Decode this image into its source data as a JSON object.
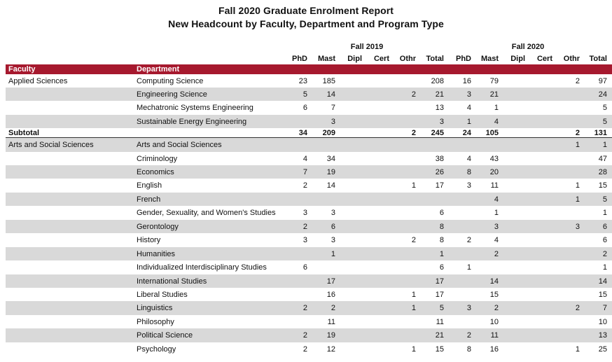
{
  "report": {
    "title": "Fall 2020 Graduate Enrolment Report",
    "subtitle": "New Headcount by Faculty, Department and Program Type",
    "group_labels": [
      "Fall 2019",
      "Fall 2020"
    ],
    "columns": [
      "PhD",
      "Mast",
      "Dipl",
      "Cert",
      "Othr",
      "Total",
      "PhD",
      "Mast",
      "Dipl",
      "Cert",
      "Othr",
      "Total"
    ],
    "band_headers": {
      "faculty": "Faculty",
      "department": "Department"
    },
    "colors": {
      "header_band": "#a6192e",
      "row_shade": "#d9d9d9"
    }
  },
  "rows": [
    {
      "faculty": "Applied Sciences",
      "department": "Computing Science",
      "values": [
        "23",
        "185",
        "",
        "",
        "",
        "208",
        "16",
        "79",
        "",
        "",
        "2",
        "97"
      ]
    },
    {
      "faculty": "",
      "department": "Engineering Science",
      "values": [
        "5",
        "14",
        "",
        "",
        "2",
        "21",
        "3",
        "21",
        "",
        "",
        "",
        "24"
      ]
    },
    {
      "faculty": "",
      "department": "Mechatronic Systems Engineering",
      "values": [
        "6",
        "7",
        "",
        "",
        "",
        "13",
        "4",
        "1",
        "",
        "",
        "",
        "5"
      ]
    },
    {
      "faculty": "",
      "department": "Sustainable Energy Engineering",
      "values": [
        "",
        "3",
        "",
        "",
        "",
        "3",
        "1",
        "4",
        "",
        "",
        "",
        "5"
      ]
    },
    {
      "faculty": "Subtotal",
      "department": "",
      "values": [
        "34",
        "209",
        "",
        "",
        "2",
        "245",
        "24",
        "105",
        "",
        "",
        "2",
        "131"
      ]
    },
    {
      "faculty": "Arts and Social Sciences",
      "department": "Arts and Social Sciences",
      "values": [
        "",
        "",
        "",
        "",
        "",
        "",
        "",
        "",
        "",
        "",
        "1",
        "1"
      ]
    },
    {
      "faculty": "",
      "department": "Criminology",
      "values": [
        "4",
        "34",
        "",
        "",
        "",
        "38",
        "4",
        "43",
        "",
        "",
        "",
        "47"
      ]
    },
    {
      "faculty": "",
      "department": "Economics",
      "values": [
        "7",
        "19",
        "",
        "",
        "",
        "26",
        "8",
        "20",
        "",
        "",
        "",
        "28"
      ]
    },
    {
      "faculty": "",
      "department": "English",
      "values": [
        "2",
        "14",
        "",
        "",
        "1",
        "17",
        "3",
        "11",
        "",
        "",
        "1",
        "15"
      ]
    },
    {
      "faculty": "",
      "department": "French",
      "values": [
        "",
        "",
        "",
        "",
        "",
        "",
        "",
        "4",
        "",
        "",
        "1",
        "5"
      ]
    },
    {
      "faculty": "",
      "department": "Gender, Sexuality, and Women's Studies",
      "values": [
        "3",
        "3",
        "",
        "",
        "",
        "6",
        "",
        "1",
        "",
        "",
        "",
        "1"
      ]
    },
    {
      "faculty": "",
      "department": "Gerontology",
      "values": [
        "2",
        "6",
        "",
        "",
        "",
        "8",
        "",
        "3",
        "",
        "",
        "3",
        "6"
      ]
    },
    {
      "faculty": "",
      "department": "History",
      "values": [
        "3",
        "3",
        "",
        "",
        "2",
        "8",
        "2",
        "4",
        "",
        "",
        "",
        "6"
      ]
    },
    {
      "faculty": "",
      "department": "Humanities",
      "values": [
        "",
        "1",
        "",
        "",
        "",
        "1",
        "",
        "2",
        "",
        "",
        "",
        "2"
      ]
    },
    {
      "faculty": "",
      "department": "Individualized Interdisciplinary Studies",
      "values": [
        "6",
        "",
        "",
        "",
        "",
        "6",
        "1",
        "",
        "",
        "",
        "",
        "1"
      ]
    },
    {
      "faculty": "",
      "department": "International Studies",
      "values": [
        "",
        "17",
        "",
        "",
        "",
        "17",
        "",
        "14",
        "",
        "",
        "",
        "14"
      ]
    },
    {
      "faculty": "",
      "department": "Liberal Studies",
      "values": [
        "",
        "16",
        "",
        "",
        "1",
        "17",
        "",
        "15",
        "",
        "",
        "",
        "15"
      ]
    },
    {
      "faculty": "",
      "department": "Linguistics",
      "values": [
        "2",
        "2",
        "",
        "",
        "1",
        "5",
        "3",
        "2",
        "",
        "",
        "2",
        "7"
      ]
    },
    {
      "faculty": "",
      "department": "Philosophy",
      "values": [
        "",
        "11",
        "",
        "",
        "",
        "11",
        "",
        "10",
        "",
        "",
        "",
        "10"
      ]
    },
    {
      "faculty": "",
      "department": "Political Science",
      "values": [
        "2",
        "19",
        "",
        "",
        "",
        "21",
        "2",
        "11",
        "",
        "",
        "",
        "13"
      ]
    },
    {
      "faculty": "",
      "department": "Psychology",
      "values": [
        "2",
        "12",
        "",
        "",
        "1",
        "15",
        "8",
        "16",
        "",
        "",
        "1",
        "25"
      ]
    }
  ]
}
